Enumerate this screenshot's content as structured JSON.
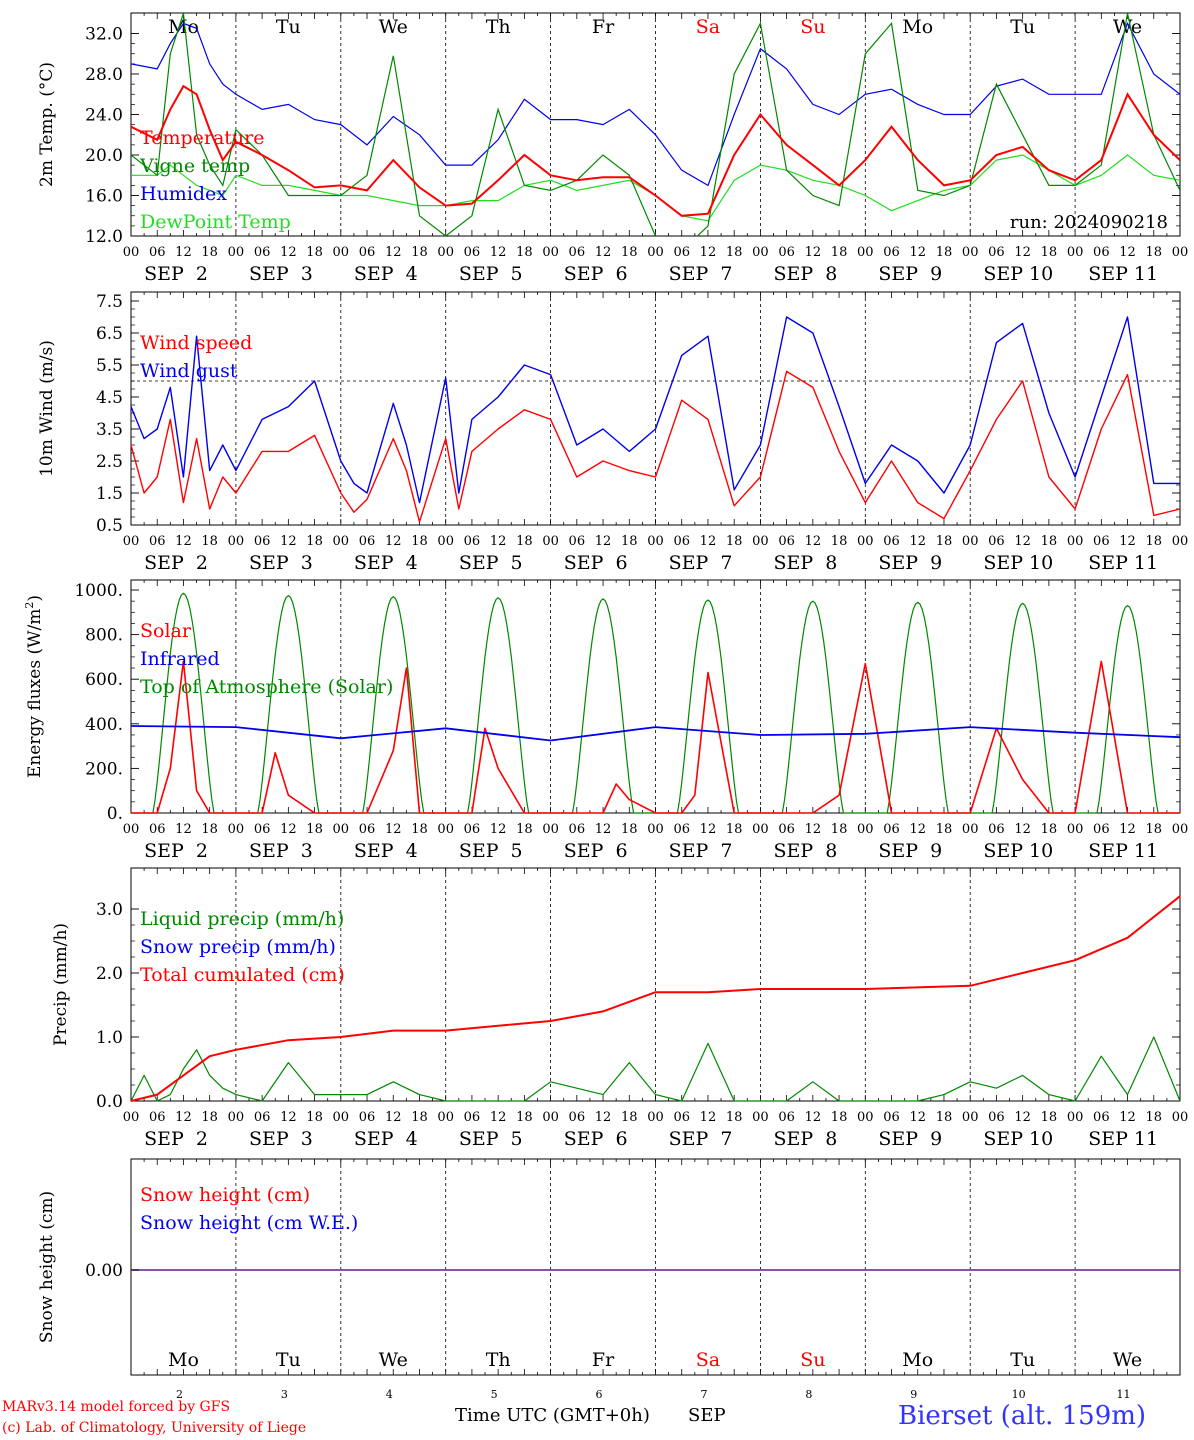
{
  "colors": {
    "temperature": "#ff0000",
    "vigne": "#008800",
    "humidex": "#0000ee",
    "dewpoint": "#22dd22",
    "weekend": "#ff0000",
    "snow_axis": "#7a3aa0"
  },
  "days": [
    "Mo",
    "Tu",
    "We",
    "Th",
    "Fr",
    "Sa",
    "Su",
    "Mo",
    "Tu",
    "We"
  ],
  "weekend_days": [
    5,
    6
  ],
  "date_labels": [
    "SEP  2",
    "SEP  3",
    "SEP  4",
    "SEP  5",
    "SEP  6",
    "SEP  7",
    "SEP  8",
    "SEP  9",
    "SEP 10",
    "SEP 11"
  ],
  "hour_ticks": [
    "00",
    "06",
    "12",
    "18"
  ],
  "bottom_dates": [
    "2",
    "3",
    "4",
    "5",
    "6",
    "7",
    "8",
    "9",
    "10",
    "11"
  ],
  "chart_data": [
    {
      "type": "line",
      "ylabel": "2m Temp. (°C)",
      "yticks": [
        "12.0",
        "16.0",
        "20.0",
        "24.0",
        "28.0",
        "32.0"
      ],
      "ylim": [
        12,
        34
      ],
      "annotation": "run: 2024090218",
      "x_unit": "hours since 2024-09-02 00 UTC",
      "series": [
        {
          "name": "Temperature",
          "color": "temperature",
          "x": [
            0,
            6,
            9,
            12,
            15,
            18,
            21,
            24,
            30,
            36,
            42,
            48,
            54,
            60,
            66,
            72,
            78,
            84,
            90,
            96,
            102,
            108,
            114,
            120,
            126,
            132,
            138,
            144,
            150,
            156,
            162,
            168,
            174,
            180,
            186,
            192,
            198,
            204,
            210,
            216,
            222,
            228,
            234,
            240
          ],
          "y": [
            22.8,
            21.5,
            24.5,
            26.8,
            26.0,
            22.5,
            19.5,
            21.3,
            20.0,
            18.5,
            16.8,
            17.0,
            16.5,
            19.5,
            16.8,
            15.0,
            15.2,
            17.5,
            20.0,
            18.0,
            17.5,
            17.8,
            17.8,
            16.0,
            14.0,
            14.2,
            20.0,
            24.0,
            21.0,
            19.0,
            17.0,
            19.5,
            22.8,
            19.5,
            17.0,
            17.5,
            20.0,
            20.8,
            18.5,
            17.5,
            19.5,
            26.0,
            22.0,
            19.5
          ]
        },
        {
          "name": "Vigne temp",
          "color": "vigne",
          "x": [
            0,
            6,
            9,
            12,
            15,
            18,
            21,
            24,
            30,
            36,
            42,
            48,
            54,
            60,
            66,
            72,
            78,
            84,
            90,
            96,
            102,
            108,
            114,
            120,
            126,
            132,
            138,
            144,
            150,
            156,
            162,
            168,
            174,
            180,
            186,
            192,
            198,
            204,
            210,
            216,
            222,
            228,
            234,
            240
          ],
          "y": [
            20.0,
            18.0,
            30.0,
            34.0,
            22.0,
            19.0,
            17.0,
            22.5,
            20.0,
            16.0,
            16.0,
            16.0,
            18.0,
            29.8,
            14.0,
            12.0,
            14.0,
            24.5,
            17.0,
            16.5,
            17.5,
            20.0,
            18.0,
            12.0,
            10.5,
            13.0,
            28.0,
            33.0,
            18.5,
            16.0,
            15.0,
            30.0,
            33.0,
            16.5,
            16.0,
            17.0,
            27.0,
            22.0,
            17.0,
            17.0,
            19.0,
            34.0,
            22.0,
            16.5
          ]
        },
        {
          "name": "Humidex",
          "color": "humidex",
          "x": [
            0,
            6,
            9,
            12,
            15,
            18,
            21,
            24,
            30,
            36,
            42,
            48,
            54,
            60,
            66,
            72,
            78,
            84,
            90,
            96,
            102,
            108,
            114,
            120,
            126,
            132,
            138,
            144,
            150,
            156,
            162,
            168,
            174,
            180,
            186,
            192,
            198,
            204,
            210,
            216,
            222,
            228,
            234,
            240
          ],
          "y": [
            29.0,
            28.5,
            31.0,
            33.0,
            32.5,
            29.0,
            27.0,
            26.0,
            24.5,
            25.0,
            23.5,
            23.0,
            21.0,
            23.8,
            22.0,
            19.0,
            19.0,
            21.5,
            25.5,
            23.5,
            23.5,
            23.0,
            24.5,
            22.0,
            18.5,
            17.0,
            24.0,
            30.5,
            28.5,
            25.0,
            24.0,
            26.0,
            26.5,
            25.0,
            24.0,
            24.0,
            26.8,
            27.5,
            26.0,
            26.0,
            26.0,
            33.0,
            28.0,
            26.0
          ]
        },
        {
          "name": "DewPoint Temp",
          "color": "dewpoint",
          "x": [
            0,
            6,
            9,
            12,
            15,
            18,
            21,
            24,
            30,
            36,
            42,
            48,
            54,
            60,
            66,
            72,
            78,
            84,
            90,
            96,
            102,
            108,
            114,
            120,
            126,
            132,
            138,
            144,
            150,
            156,
            162,
            168,
            174,
            180,
            186,
            192,
            198,
            204,
            210,
            216,
            222,
            228,
            234,
            240
          ],
          "y": [
            18.0,
            18.0,
            19.0,
            18.0,
            17.0,
            16.5,
            16.0,
            18.0,
            17.0,
            17.0,
            16.5,
            16.0,
            16.0,
            15.5,
            15.0,
            15.0,
            15.5,
            15.5,
            17.0,
            17.5,
            16.5,
            17.0,
            17.5,
            16.0,
            14.0,
            13.5,
            17.5,
            19.0,
            18.5,
            17.5,
            17.0,
            16.0,
            14.5,
            15.5,
            16.5,
            17.0,
            19.5,
            20.0,
            18.5,
            17.0,
            18.0,
            20.0,
            18.0,
            17.5
          ]
        }
      ]
    },
    {
      "type": "line",
      "ylabel": "10m Wind (m/s)",
      "yticks": [
        "0.5",
        "1.5",
        "2.5",
        "3.5",
        "4.5",
        "5.5",
        "6.5",
        "7.5"
      ],
      "ylim": [
        0.5,
        7.5
      ],
      "reference_line": 5.0,
      "x_unit": "hours since 2024-09-02 00 UTC",
      "series": [
        {
          "name": "Wind speed",
          "color": "temperature",
          "x": [
            0,
            3,
            6,
            9,
            12,
            15,
            18,
            21,
            24,
            30,
            36,
            42,
            48,
            51,
            54,
            60,
            63,
            66,
            72,
            75,
            78,
            84,
            90,
            96,
            102,
            108,
            114,
            120,
            126,
            132,
            138,
            144,
            150,
            156,
            162,
            168,
            174,
            180,
            186,
            192,
            198,
            204,
            210,
            216,
            222,
            228,
            234,
            240
          ],
          "y": [
            3.0,
            1.5,
            2.0,
            3.8,
            1.2,
            3.2,
            1.0,
            2.0,
            1.5,
            2.8,
            2.8,
            3.3,
            1.5,
            0.9,
            1.3,
            3.2,
            2.2,
            0.6,
            3.2,
            1.0,
            2.8,
            3.5,
            4.1,
            3.8,
            2.0,
            2.5,
            2.2,
            2.0,
            4.4,
            3.8,
            1.1,
            2.0,
            5.3,
            4.8,
            2.8,
            1.2,
            2.5,
            1.2,
            0.7,
            2.2,
            3.8,
            5.0,
            2.0,
            1.0,
            3.5,
            5.2,
            0.8,
            1.0
          ]
        },
        {
          "name": "Wind gust",
          "color": "humidex",
          "x": [
            0,
            3,
            6,
            9,
            12,
            15,
            18,
            21,
            24,
            30,
            36,
            42,
            48,
            51,
            54,
            60,
            63,
            66,
            72,
            75,
            78,
            84,
            90,
            96,
            102,
            108,
            114,
            120,
            126,
            132,
            138,
            144,
            150,
            156,
            162,
            168,
            174,
            180,
            186,
            192,
            198,
            204,
            210,
            216,
            222,
            228,
            234,
            240
          ],
          "y": [
            4.2,
            3.2,
            3.5,
            4.8,
            2.0,
            6.4,
            2.2,
            3.0,
            2.2,
            3.8,
            4.2,
            5.0,
            2.5,
            1.8,
            1.5,
            4.3,
            3.0,
            1.2,
            5.1,
            1.5,
            3.8,
            4.5,
            5.5,
            5.2,
            3.0,
            3.5,
            2.8,
            3.5,
            5.8,
            6.4,
            1.6,
            3.0,
            7.0,
            6.5,
            4.2,
            1.8,
            3.0,
            2.5,
            1.5,
            3.0,
            6.2,
            6.8,
            4.0,
            2.0,
            4.5,
            7.0,
            1.8,
            1.8
          ]
        }
      ]
    },
    {
      "type": "line",
      "ylabel": "Energy fluxes (W/m2)",
      "yticks": [
        "0.",
        "200.",
        "400.",
        "600.",
        "800.",
        "1000."
      ],
      "ylim": [
        0,
        1000
      ],
      "x_unit": "hours since 2024-09-02 00 UTC",
      "series": [
        {
          "name": "Solar",
          "color": "temperature",
          "x": [
            0,
            6,
            9,
            12,
            15,
            18,
            21,
            24,
            30,
            33,
            36,
            42,
            48,
            54,
            60,
            63,
            66,
            72,
            78,
            81,
            84,
            90,
            96,
            102,
            108,
            111,
            114,
            120,
            126,
            129,
            132,
            138,
            144,
            150,
            156,
            162,
            168,
            174,
            177,
            180,
            186,
            192,
            198,
            204,
            210,
            216,
            222,
            228,
            234,
            240
          ],
          "y": [
            0,
            0,
            200,
            680,
            100,
            0,
            0,
            0,
            0,
            270,
            80,
            0,
            0,
            0,
            280,
            650,
            0,
            0,
            0,
            380,
            200,
            0,
            0,
            0,
            0,
            130,
            60,
            0,
            0,
            80,
            630,
            0,
            0,
            0,
            0,
            80,
            670,
            0,
            0,
            0,
            0,
            0,
            380,
            150,
            0,
            0,
            680,
            0,
            0,
            0
          ]
        },
        {
          "name": "Infrared",
          "color": "humidex",
          "x": [
            0,
            24,
            48,
            72,
            96,
            120,
            144,
            168,
            192,
            216,
            240
          ],
          "y": [
            390,
            385,
            335,
            380,
            325,
            385,
            350,
            355,
            385,
            360,
            340
          ]
        },
        {
          "name": "Top of Atmosphere (Solar)",
          "color": "vigne",
          "daily_peak": [
            985,
            975,
            970,
            965,
            960,
            955,
            950,
            945,
            940,
            930
          ]
        }
      ]
    },
    {
      "type": "line",
      "ylabel": "Precip (mm/h)",
      "yticks": [
        "0.0",
        "1.0",
        "2.0",
        "3.0"
      ],
      "ylim": [
        0,
        3.5
      ],
      "x_unit": "hours since 2024-09-02 00 UTC",
      "series": [
        {
          "name": "Liquid precip (mm/h)",
          "color": "vigne",
          "x": [
            0,
            3,
            6,
            9,
            12,
            15,
            18,
            21,
            24,
            30,
            36,
            42,
            48,
            54,
            60,
            66,
            72,
            78,
            84,
            90,
            96,
            102,
            108,
            114,
            120,
            126,
            132,
            138,
            144,
            150,
            156,
            162,
            168,
            174,
            180,
            186,
            192,
            198,
            204,
            210,
            216,
            222,
            228,
            234,
            240
          ],
          "y": [
            0,
            0.4,
            0,
            0.1,
            0.5,
            0.8,
            0.4,
            0.2,
            0.1,
            0,
            0.6,
            0.1,
            0.1,
            0.1,
            0.3,
            0.1,
            0,
            0,
            0,
            0,
            0.3,
            0.2,
            0.1,
            0.6,
            0.1,
            0,
            0.9,
            0,
            0,
            0,
            0.3,
            0,
            0,
            0,
            0,
            0.1,
            0.3,
            0.2,
            0.4,
            0.1,
            0,
            0.7,
            0.1,
            1.0,
            0
          ]
        },
        {
          "name": "Snow precip (mm/h)",
          "color": "humidex",
          "values": [
            0
          ]
        },
        {
          "name": "Total cumulated (cm)",
          "color": "temperature",
          "x": [
            0,
            6,
            12,
            18,
            24,
            36,
            48,
            60,
            72,
            96,
            108,
            120,
            132,
            144,
            168,
            192,
            204,
            216,
            228,
            240
          ],
          "y": [
            0,
            0.1,
            0.4,
            0.7,
            0.8,
            0.95,
            1.0,
            1.1,
            1.1,
            1.25,
            1.4,
            1.7,
            1.7,
            1.75,
            1.75,
            1.8,
            2.0,
            2.2,
            2.55,
            3.2
          ]
        }
      ]
    },
    {
      "type": "line",
      "ylabel": "Snow height (cm)",
      "yticks": [
        "0.00"
      ],
      "series": [
        {
          "name": "Snow height (cm)",
          "color": "temperature",
          "values": [
            0
          ]
        },
        {
          "name": "Snow height (cm W.E.)",
          "color": "humidex",
          "values": [
            0
          ]
        }
      ]
    }
  ],
  "footer": {
    "model": "MARv3.14 model forced by GFS",
    "lab": "(c) Lab. of Climatology, University of Liege",
    "xtitle": "Time UTC (GMT+0h)",
    "month": "SEP",
    "station": "Bierset (alt. 159m)"
  }
}
